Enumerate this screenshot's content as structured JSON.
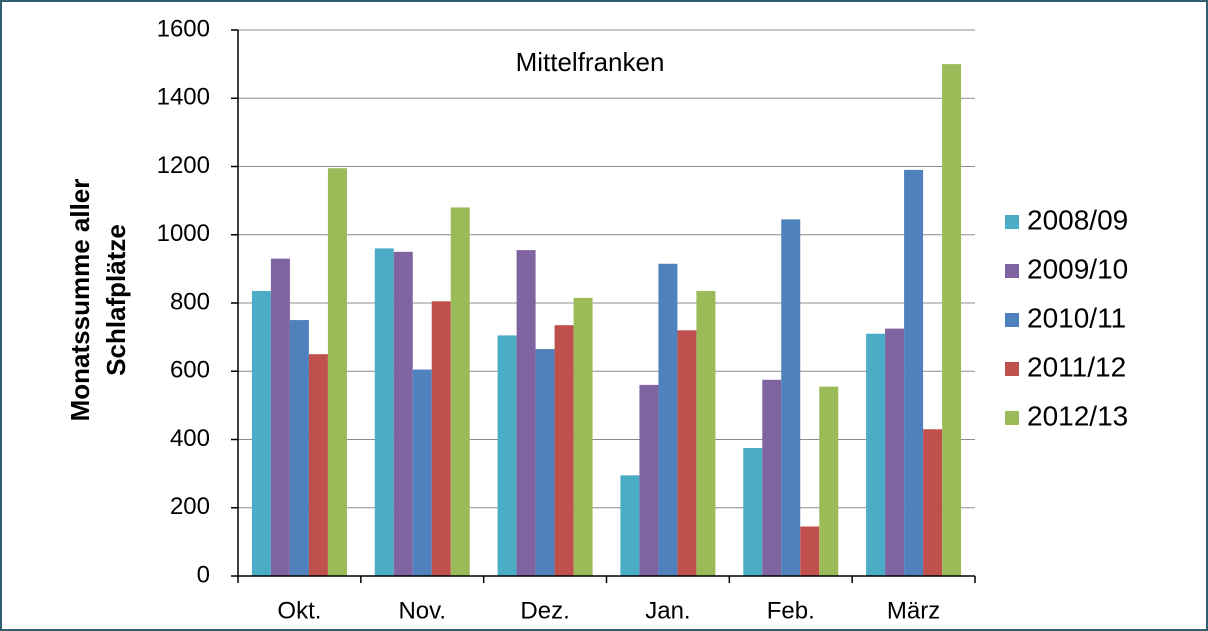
{
  "chart_data": {
    "type": "bar",
    "title": "Mittelfranken",
    "y_label": [
      "Monatssumme aller",
      "Schlafplätze"
    ],
    "categories": [
      "Okt.",
      "Nov.",
      "Dez.",
      "Jan.",
      "Feb.",
      "März"
    ],
    "series": [
      {
        "name": "2008/09",
        "color": "#4bacc6",
        "values": [
          835,
          960,
          705,
          295,
          375,
          710
        ]
      },
      {
        "name": "2009/10",
        "color": "#8064a2",
        "values": [
          930,
          950,
          955,
          560,
          575,
          725
        ]
      },
      {
        "name": "2010/11",
        "color": "#4f81bd",
        "values": [
          750,
          605,
          665,
          915,
          1045,
          1190
        ]
      },
      {
        "name": "2011/12",
        "color": "#c0504d",
        "values": [
          650,
          805,
          735,
          720,
          145,
          430
        ]
      },
      {
        "name": "2012/13",
        "color": "#9bbb59",
        "values": [
          1195,
          1080,
          815,
          835,
          555,
          1500
        ]
      }
    ],
    "ylim": [
      0,
      1600
    ],
    "yticks": [
      0,
      200,
      400,
      600,
      800,
      1000,
      1200,
      1400,
      1600
    ],
    "grid": true,
    "legend": "right"
  }
}
